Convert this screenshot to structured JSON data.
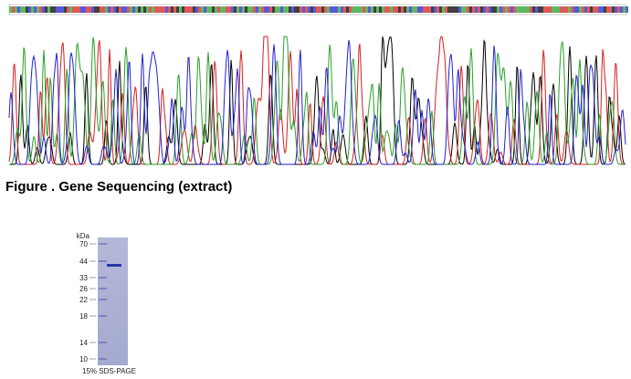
{
  "figure": {
    "caption": "Figure . Gene Sequencing (extract)"
  },
  "gel": {
    "unit": "kDa",
    "markers": [
      "70",
      "44",
      "33",
      "26",
      "22",
      "18",
      "14",
      "10"
    ],
    "label": "15% SDS-PAGE"
  }
}
